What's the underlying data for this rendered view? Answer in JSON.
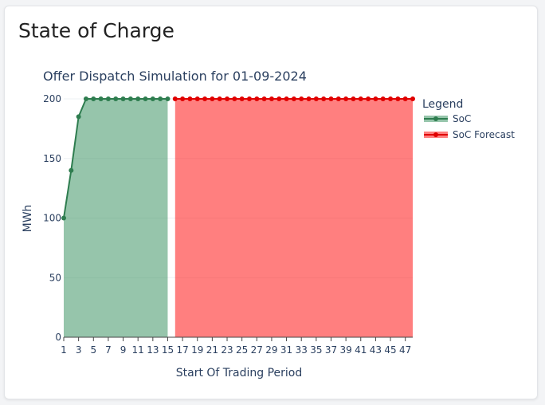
{
  "card": {
    "title": "State of Charge"
  },
  "colors": {
    "soc": "#2e7d4f",
    "soc_fill": "rgba(46,139,87,0.5)",
    "forecast": "#e00000",
    "forecast_fill": "rgba(255,0,0,0.5)",
    "text": "#2a3f5f",
    "grid": "#eef0f3"
  },
  "chart_data": {
    "type": "area",
    "title": "Offer Dispatch Simulation for 01-09-2024",
    "xlabel": "Start Of Trading Period",
    "ylabel": "MWh",
    "xlim": [
      1,
      48
    ],
    "ylim": [
      0,
      200
    ],
    "yticks": [
      0,
      50,
      100,
      150,
      200
    ],
    "xticks": [
      1,
      3,
      5,
      7,
      9,
      11,
      13,
      15,
      17,
      19,
      21,
      23,
      25,
      27,
      29,
      31,
      33,
      35,
      37,
      39,
      41,
      43,
      45,
      47
    ],
    "legend_title": "Legend",
    "legend_position": "right",
    "series": [
      {
        "name": "SoC",
        "x": [
          1,
          2,
          3,
          4,
          5,
          6,
          7,
          8,
          9,
          10,
          11,
          12,
          13,
          14,
          15
        ],
        "y": [
          100,
          140,
          185,
          200,
          200,
          200,
          200,
          200,
          200,
          200,
          200,
          200,
          200,
          200,
          200
        ]
      },
      {
        "name": "SoC Forecast",
        "x": [
          16,
          17,
          18,
          19,
          20,
          21,
          22,
          23,
          24,
          25,
          26,
          27,
          28,
          29,
          30,
          31,
          32,
          33,
          34,
          35,
          36,
          37,
          38,
          39,
          40,
          41,
          42,
          43,
          44,
          45,
          46,
          47,
          48
        ],
        "y": [
          200,
          200,
          200,
          200,
          200,
          200,
          200,
          200,
          200,
          200,
          200,
          200,
          200,
          200,
          200,
          200,
          200,
          200,
          200,
          200,
          200,
          200,
          200,
          200,
          200,
          200,
          200,
          200,
          200,
          200,
          200,
          200,
          200
        ]
      }
    ]
  }
}
